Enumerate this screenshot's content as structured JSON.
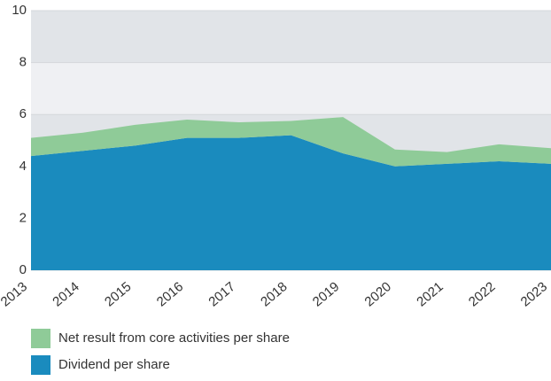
{
  "chart_data": {
    "type": "stacked_area",
    "x": [
      2013,
      2014,
      2015,
      2016,
      2017,
      2018,
      2019,
      2020,
      2021,
      2022,
      2023
    ],
    "series": [
      {
        "name": "Dividend per share",
        "color": "#1a8bbe",
        "values": [
          4.4,
          4.6,
          4.8,
          5.1,
          5.1,
          5.2,
          4.5,
          4.0,
          4.1,
          4.2,
          4.1
        ]
      },
      {
        "name": "Net result from core activities per share",
        "color": "#8fcb98",
        "values": [
          0.7,
          0.7,
          0.8,
          0.7,
          0.6,
          0.55,
          1.4,
          0.65,
          0.45,
          0.65,
          0.6
        ]
      }
    ],
    "xlim": [
      2013,
      2023
    ],
    "ylim": [
      0,
      10
    ],
    "yticks": [
      0,
      2,
      4,
      6,
      8,
      10
    ],
    "grid": true,
    "legend": "bottom"
  }
}
